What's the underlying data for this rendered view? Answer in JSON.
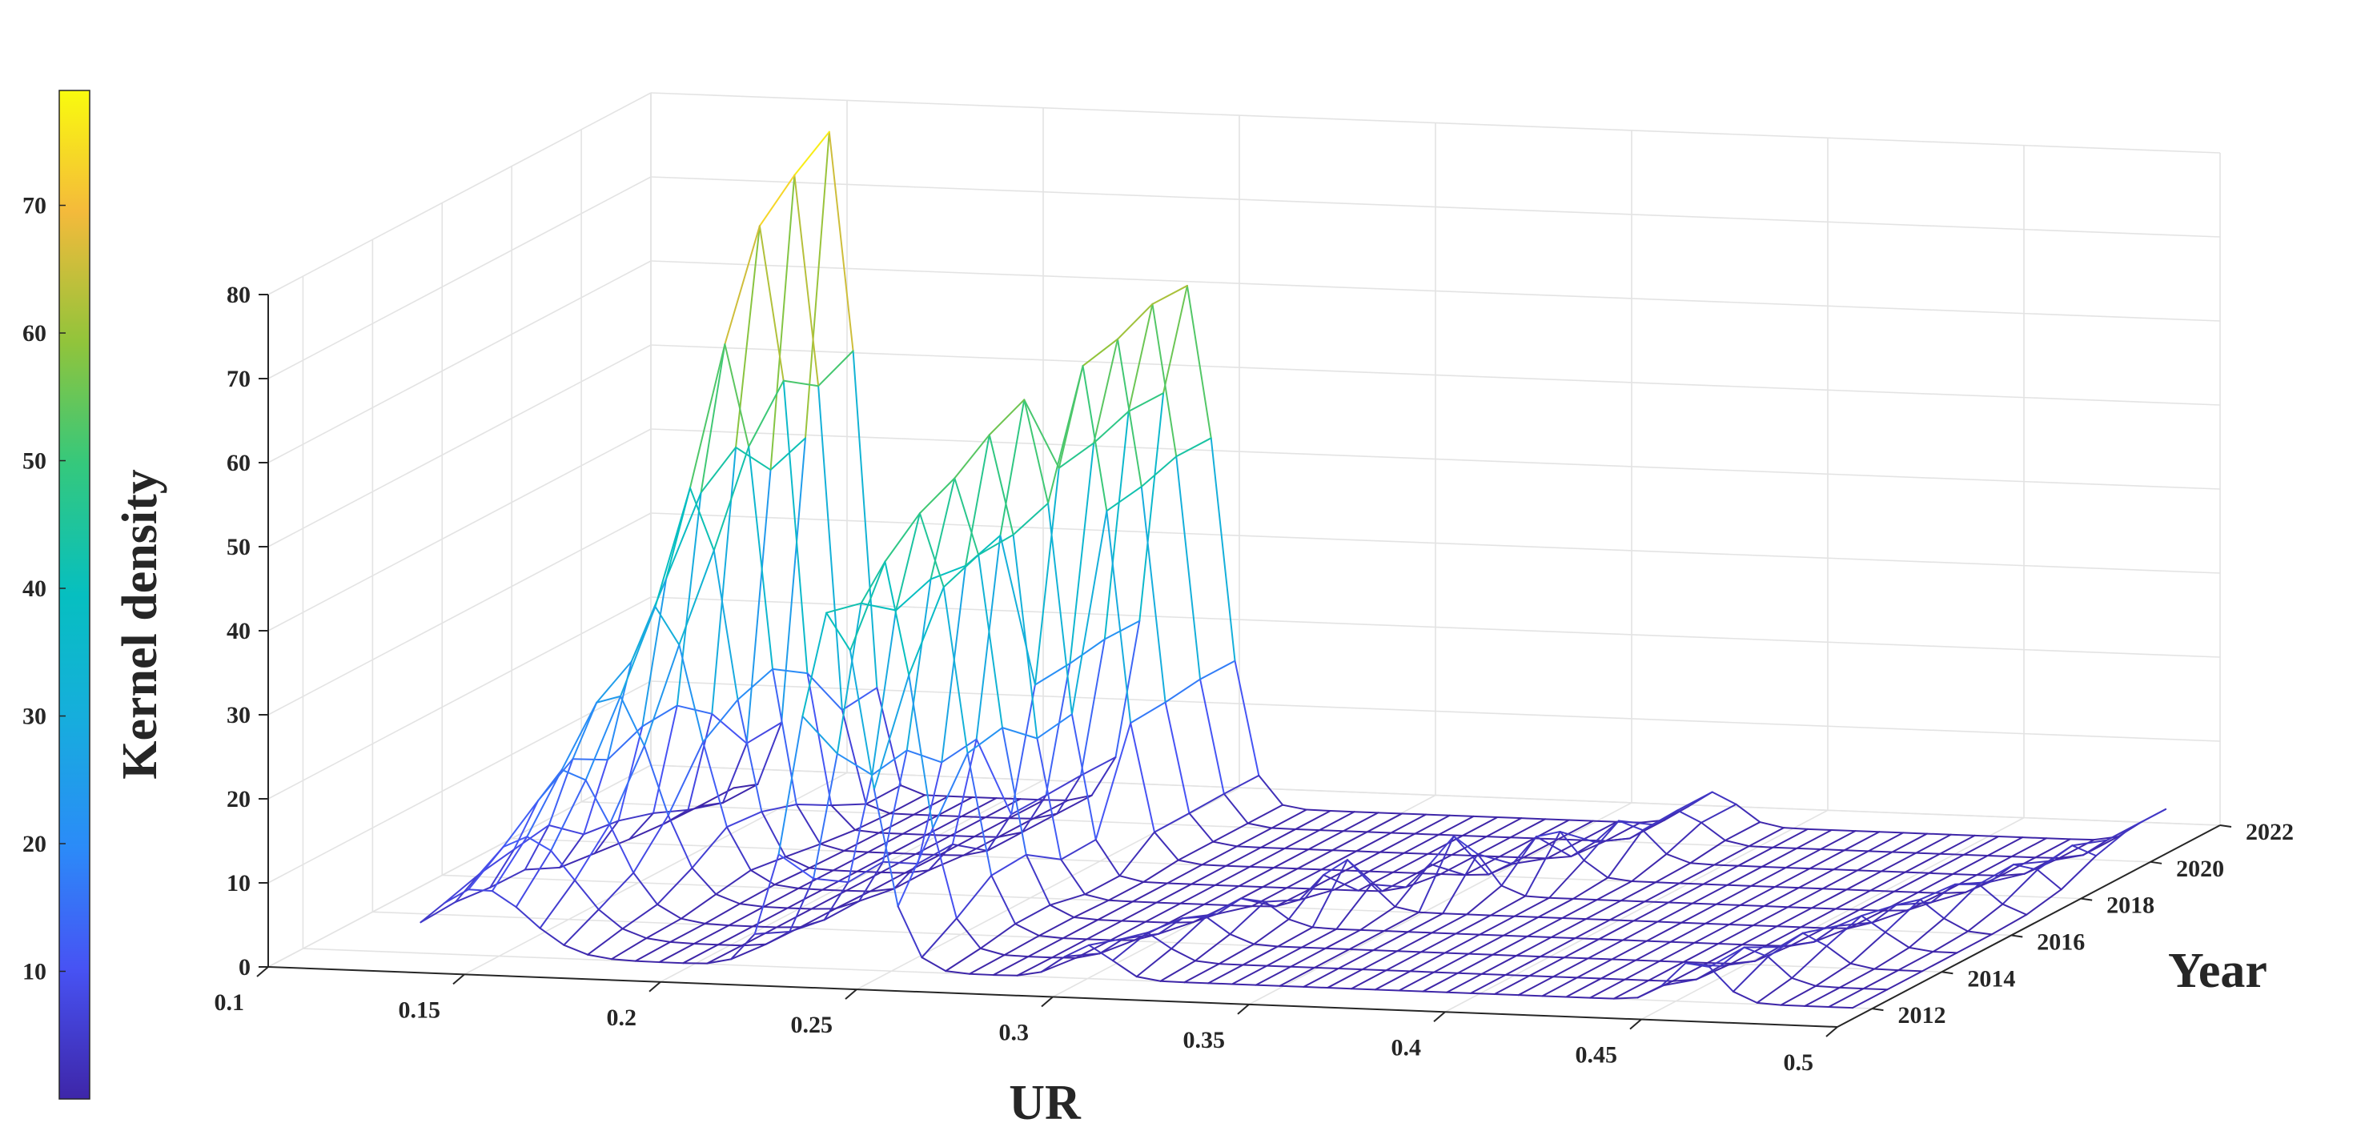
{
  "chart_data": {
    "type": "surface",
    "title": "",
    "xlabel": "UR",
    "ylabel": "Year",
    "zlabel": "Kernel density",
    "x_ticks": [
      "0.1",
      "0.15",
      "0.2",
      "0.25",
      "0.3",
      "0.35",
      "0.4",
      "0.45",
      "0.5"
    ],
    "y_ticks": [
      "2012",
      "2014",
      "2016",
      "2018",
      "2020",
      "2022"
    ],
    "z_ticks": [
      "0",
      "10",
      "20",
      "30",
      "40",
      "50",
      "60",
      "70",
      "80"
    ],
    "xlim": [
      0.1,
      0.5
    ],
    "ylim": [
      2011,
      2022
    ],
    "zlim": [
      0,
      80
    ],
    "grid": true,
    "colormap": "parula",
    "colorbar": {
      "ticks": [
        "10",
        "20",
        "30",
        "40",
        "50",
        "60",
        "70"
      ],
      "range": [
        0,
        79
      ]
    },
    "colors": {
      "low": "#3e26a8",
      "mid": "#17becf",
      "high": "#f9fb0e"
    },
    "years": [
      2012,
      2013,
      2014,
      2015,
      2016,
      2017,
      2018,
      2019,
      2020,
      2021
    ],
    "series": [
      {
        "year": 2012,
        "peaks": [
          {
            "x": 0.145,
            "height": 8,
            "width": 0.012
          },
          {
            "x": 0.235,
            "height": 43,
            "width": 0.009
          },
          {
            "x": 0.3,
            "height": 4,
            "width": 0.006
          },
          {
            "x": 0.455,
            "height": 5,
            "width": 0.006
          }
        ]
      },
      {
        "year": 2013,
        "peaks": [
          {
            "x": 0.148,
            "height": 12,
            "width": 0.012
          },
          {
            "x": 0.238,
            "height": 47,
            "width": 0.009
          },
          {
            "x": 0.305,
            "height": 3.5,
            "width": 0.006
          },
          {
            "x": 0.46,
            "height": 4.5,
            "width": 0.006
          }
        ]
      },
      {
        "year": 2014,
        "peaks": [
          {
            "x": 0.15,
            "height": 18,
            "width": 0.011
          },
          {
            "x": 0.24,
            "height": 50,
            "width": 0.009
          },
          {
            "x": 0.31,
            "height": 3.5,
            "width": 0.006
          },
          {
            "x": 0.465,
            "height": 4,
            "width": 0.006
          }
        ]
      },
      {
        "year": 2015,
        "peaks": [
          {
            "x": 0.152,
            "height": 25,
            "width": 0.011
          },
          {
            "x": 0.24,
            "height": 52,
            "width": 0.009
          },
          {
            "x": 0.315,
            "height": 3.5,
            "width": 0.006
          },
          {
            "x": 0.47,
            "height": 4,
            "width": 0.006
          }
        ]
      },
      {
        "year": 2016,
        "peaks": [
          {
            "x": 0.155,
            "height": 33,
            "width": 0.01
          },
          {
            "x": 0.24,
            "height": 55,
            "width": 0.008
          },
          {
            "x": 0.33,
            "height": 6,
            "width": 0.006
          },
          {
            "x": 0.475,
            "height": 4,
            "width": 0.006
          }
        ]
      },
      {
        "year": 2017,
        "peaks": [
          {
            "x": 0.155,
            "height": 45,
            "width": 0.009
          },
          {
            "x": 0.24,
            "height": 57,
            "width": 0.008
          },
          {
            "x": 0.35,
            "height": 7,
            "width": 0.006
          },
          {
            "x": 0.48,
            "height": 4,
            "width": 0.006
          }
        ]
      },
      {
        "year": 2018,
        "peaks": [
          {
            "x": 0.155,
            "height": 60,
            "width": 0.008
          },
          {
            "x": 0.245,
            "height": 59,
            "width": 0.008
          },
          {
            "x": 0.365,
            "height": 6,
            "width": 0.006
          },
          {
            "x": 0.485,
            "height": 4,
            "width": 0.006
          }
        ]
      },
      {
        "year": 2019,
        "peaks": [
          {
            "x": 0.155,
            "height": 72,
            "width": 0.007
          },
          {
            "x": 0.245,
            "height": 60,
            "width": 0.008
          },
          {
            "x": 0.375,
            "height": 5,
            "width": 0.006
          },
          {
            "x": 0.49,
            "height": 4,
            "width": 0.006
          }
        ]
      },
      {
        "year": 2020,
        "peaks": [
          {
            "x": 0.155,
            "height": 76,
            "width": 0.006
          },
          {
            "x": 0.245,
            "height": 62,
            "width": 0.008
          },
          {
            "x": 0.38,
            "height": 4,
            "width": 0.006
          },
          {
            "x": 0.495,
            "height": 4,
            "width": 0.006
          }
        ]
      },
      {
        "year": 2021,
        "peaks": [
          {
            "x": 0.155,
            "height": 79,
            "width": 0.006
          },
          {
            "x": 0.245,
            "height": 62,
            "width": 0.008
          },
          {
            "x": 0.38,
            "height": 4,
            "width": 0.006
          },
          {
            "x": 0.495,
            "height": 4,
            "width": 0.006
          }
        ]
      }
    ]
  }
}
